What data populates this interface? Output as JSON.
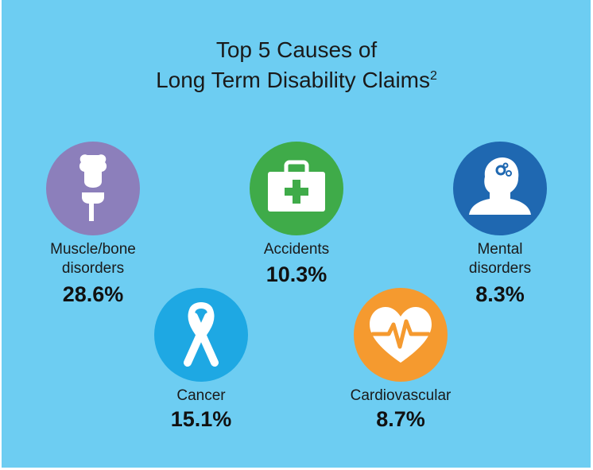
{
  "title_line1": "Top 5 Causes of",
  "title_line2": "Long Term Disability Claims",
  "title_sup": "2",
  "chart_data": {
    "type": "infographic",
    "title": "Top 5 Causes of Long Term Disability Claims",
    "unit": "%",
    "categories": [
      "Muscle/bone disorders",
      "Accidents",
      "Mental disorders",
      "Cancer",
      "Cardiovascular"
    ],
    "values": [
      28.6,
      10.3,
      8.3,
      15.1,
      8.7
    ]
  },
  "items": [
    {
      "line1": "Muscle/bone",
      "line2": "disorders",
      "value": "28.6%",
      "color": "#8c7fbb",
      "icon": "bone-joint-icon"
    },
    {
      "line1": "Accidents",
      "line2": "",
      "value": "10.3%",
      "color": "#3fab49",
      "icon": "first-aid-kit-icon"
    },
    {
      "line1": "Mental",
      "line2": "disorders",
      "value": "8.3%",
      "color": "#1f68b1",
      "icon": "head-gears-icon"
    },
    {
      "line1": "Cancer",
      "line2": "",
      "value": "15.1%",
      "color": "#1ea8e3",
      "icon": "ribbon-icon"
    },
    {
      "line1": "Cardiovascular",
      "line2": "",
      "value": "8.7%",
      "color": "#f59a2f",
      "icon": "heart-pulse-icon"
    }
  ]
}
